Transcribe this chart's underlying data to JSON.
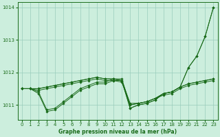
{
  "xlabel": "Graphe pression niveau de la mer (hPa)",
  "bg_color": "#cceedd",
  "grid_color": "#99ccbb",
  "line_color": "#1a6b1a",
  "ylim": [
    1010.55,
    1014.15
  ],
  "xlim": [
    -0.5,
    23.5
  ],
  "yticks": [
    1011,
    1012,
    1013,
    1014
  ],
  "xticks": [
    0,
    1,
    2,
    3,
    4,
    5,
    6,
    7,
    8,
    9,
    10,
    11,
    12,
    13,
    14,
    15,
    16,
    17,
    18,
    19,
    20,
    21,
    22,
    23
  ],
  "series": [
    {
      "y": [
        1011.5,
        1011.5,
        1011.35,
        1010.8,
        1010.85,
        1011.05,
        1011.25,
        1011.45,
        1011.55,
        1011.65,
        1011.65,
        1011.75,
        1011.75,
        1011.05,
        1011.05,
        1011.1,
        1011.2,
        1011.3,
        1011.35,
        1011.5,
        1011.6,
        1011.65,
        1011.7,
        1011.75
      ],
      "marker": true
    },
    {
      "y": [
        1011.5,
        1011.5,
        1011.4,
        1010.85,
        1010.9,
        1011.1,
        1011.3,
        1011.5,
        1011.6,
        1011.7,
        1011.7,
        1011.8,
        1011.8,
        1011.0,
        1011.05,
        1011.1,
        1011.2,
        1011.35,
        1011.4,
        1011.55,
        1011.65,
        1011.7,
        1011.75,
        1011.8
      ],
      "marker": true
    },
    {
      "y": [
        1011.5,
        1011.5,
        1011.45,
        1011.5,
        1011.55,
        1011.6,
        1011.65,
        1011.7,
        1011.75,
        1011.8,
        1011.75,
        1011.75,
        1011.7,
        1011.0,
        1011.05,
        1011.1,
        1011.2,
        1011.35,
        1011.4,
        1011.55,
        1011.65,
        1011.7,
        1011.75,
        1011.8
      ],
      "marker": true
    },
    {
      "y": [
        1011.5,
        1011.5,
        1011.5,
        1011.55,
        1011.6,
        1011.65,
        1011.7,
        1011.75,
        1011.8,
        1011.85,
        1011.8,
        1011.8,
        1011.75,
        1010.9,
        1011.0,
        1011.05,
        1011.15,
        1011.35,
        1011.4,
        1011.55,
        1012.15,
        1012.5,
        1013.1,
        1014.0
      ],
      "marker": true
    },
    {
      "y": [
        1011.5,
        1011.5,
        1011.5,
        1011.55,
        1011.6,
        1011.65,
        1011.7,
        1011.75,
        1011.8,
        1011.85,
        1011.8,
        1011.8,
        1011.75,
        1010.9,
        1011.0,
        1011.05,
        1011.15,
        1011.35,
        1011.4,
        1011.55,
        1012.15,
        1012.5,
        1013.1,
        1014.0
      ],
      "marker": true
    }
  ]
}
